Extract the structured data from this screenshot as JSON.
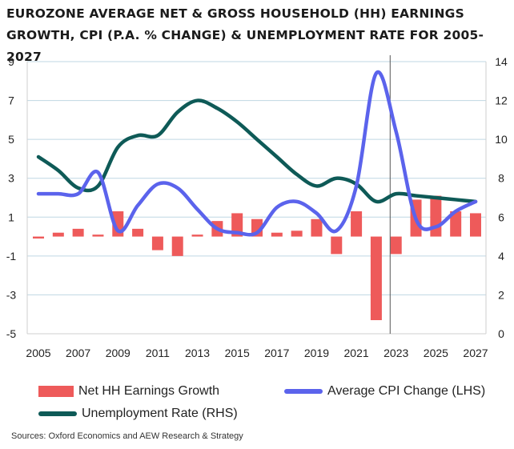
{
  "title": "EUROZONE AVERAGE NET & GROSS HOUSEHOLD (HH) EARNINGS GROWTH, CPI (P.A. % CHANGE) & UNEMPLOYMENT RATE FOR 2005-2027",
  "source": "Sources: Oxford Economics and AEW Research & Strategy",
  "colors": {
    "bar": "#ee5a5a",
    "cpi": "#5b63ec",
    "unemployment": "#0e5a57",
    "grid": "#bfd7e3"
  },
  "chart_data": {
    "type": "bar+line",
    "title": "EUROZONE AVERAGE NET & GROSS HOUSEHOLD (HH) EARNINGS GROWTH, CPI (P.A. % CHANGE) & UNEMPLOYMENT RATE FOR 2005-2027",
    "x": [
      2005,
      2006,
      2007,
      2008,
      2009,
      2010,
      2011,
      2012,
      2013,
      2014,
      2015,
      2016,
      2017,
      2018,
      2019,
      2020,
      2021,
      2022,
      2023,
      2024,
      2025,
      2026,
      2027
    ],
    "x_tick_labels": [
      "2005",
      "2007",
      "2009",
      "2011",
      "2013",
      "2015",
      "2017",
      "2019",
      "2021",
      "2023",
      "2025",
      "2027"
    ],
    "ylim_left": [
      -5,
      9
    ],
    "y_ticks_left": [
      "9",
      "7",
      "5",
      "3",
      "1",
      "-1",
      "-3",
      "-5"
    ],
    "ylim_right": [
      0,
      14
    ],
    "y_ticks_right": [
      "14",
      "12",
      "10",
      "8",
      "6",
      "4",
      "2",
      "0"
    ],
    "grid": true,
    "vertical_marker_x": 2022.7,
    "series": [
      {
        "name": "Net HH Earnings Growth",
        "type": "bar",
        "axis": "left",
        "values": [
          -0.1,
          0.2,
          0.4,
          0.1,
          1.3,
          0.4,
          -0.7,
          -1.0,
          0.1,
          0.8,
          1.2,
          0.9,
          0.2,
          0.3,
          0.9,
          -0.9,
          1.3,
          -4.3,
          -0.9,
          1.9,
          2.1,
          1.3,
          1.2
        ]
      },
      {
        "name": "Average CPI Change (LHS)",
        "type": "line",
        "axis": "left",
        "values": [
          2.2,
          2.2,
          2.2,
          3.3,
          0.3,
          1.6,
          2.7,
          2.5,
          1.4,
          0.4,
          0.2,
          0.2,
          1.5,
          1.8,
          1.2,
          0.3,
          2.6,
          8.4,
          5.4,
          0.9,
          0.5,
          1.3,
          1.8
        ]
      },
      {
        "name": "Unemployment Rate (RHS)",
        "type": "line",
        "axis": "right",
        "values": [
          9.1,
          8.4,
          7.5,
          7.6,
          9.6,
          10.2,
          10.2,
          11.4,
          12.0,
          11.6,
          10.9,
          10.0,
          9.1,
          8.2,
          7.6,
          8.0,
          7.7,
          6.8,
          7.2,
          7.1,
          7.0,
          6.9,
          6.8
        ]
      }
    ],
    "legend": "bottom"
  }
}
